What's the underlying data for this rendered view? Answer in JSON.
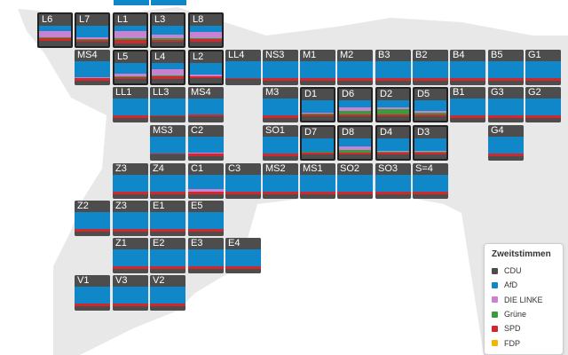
{
  "legend": {
    "title": "Zweitstimmen",
    "items": [
      {
        "key": "cdu",
        "label": "CDU",
        "color": "#4d4d4d"
      },
      {
        "key": "afd",
        "label": "AfD",
        "color": "#0f87c8"
      },
      {
        "key": "linke",
        "label": "DIE LINKE",
        "color": "#c882d2"
      },
      {
        "key": "gruene",
        "label": "Grüne",
        "color": "#3c9a3c"
      },
      {
        "key": "spd",
        "label": "SPD",
        "color": "#d2282d"
      },
      {
        "key": "fdp",
        "label": "FDP",
        "color": "#f5b400"
      }
    ]
  },
  "districts": [
    {
      "label": "L6",
      "selected": true,
      "shares": {
        "cdu": 0.25,
        "afd": 0.25,
        "linke": 0.3,
        "gruene": 0.05,
        "spd": 0.15
      }
    },
    {
      "label": "L7",
      "selected": true,
      "shares": {
        "cdu": 0.2,
        "afd": 0.55,
        "linke": 0.1,
        "gruene": 0.05,
        "spd": 0.1
      }
    },
    {
      "label": "L1",
      "selected": true,
      "shares": {
        "cdu": 0.15,
        "afd": 0.25,
        "linke": 0.35,
        "gruene": 0.1,
        "spd": 0.15
      }
    },
    {
      "label": "L3",
      "selected": true,
      "shares": {
        "cdu": 0.2,
        "afd": 0.45,
        "linke": 0.15,
        "gruene": 0.1,
        "spd": 0.1
      }
    },
    {
      "label": "L8",
      "selected": true,
      "shares": {
        "cdu": 0.2,
        "afd": 0.3,
        "linke": 0.3,
        "gruene": 0.05,
        "spd": 0.15
      }
    },
    {
      "label": "MS4",
      "selected": false,
      "shares": {
        "cdu": 0.2,
        "afd": 0.65,
        "linke": 0.05,
        "spd": 0.1
      }
    },
    {
      "label": "L5",
      "selected": true,
      "shares": {
        "cdu": 0.2,
        "afd": 0.5,
        "linke": 0.15,
        "gruene": 0.05,
        "spd": 0.1
      }
    },
    {
      "label": "L4",
      "selected": true,
      "shares": {
        "cdu": 0.2,
        "afd": 0.3,
        "linke": 0.3,
        "gruene": 0.05,
        "spd": 0.15
      }
    },
    {
      "label": "L2",
      "selected": true,
      "shares": {
        "cdu": 0.25,
        "afd": 0.55,
        "linke": 0.1,
        "spd": 0.1
      }
    },
    {
      "label": "LL4",
      "selected": false,
      "shares": {
        "cdu": 0.25,
        "afd": 0.7,
        "spd": 0.05
      }
    },
    {
      "label": "NS3",
      "selected": false,
      "shares": {
        "cdu": 0.2,
        "afd": 0.7,
        "spd": 0.1
      }
    },
    {
      "label": "M1",
      "selected": false,
      "shares": {
        "cdu": 0.2,
        "afd": 0.7,
        "spd": 0.1
      }
    },
    {
      "label": "M2",
      "selected": false,
      "shares": {
        "cdu": 0.2,
        "afd": 0.7,
        "spd": 0.1
      }
    },
    {
      "label": "B3",
      "selected": false,
      "shares": {
        "cdu": 0.2,
        "afd": 0.7,
        "spd": 0.1
      }
    },
    {
      "label": "B2",
      "selected": false,
      "shares": {
        "cdu": 0.2,
        "afd": 0.7,
        "spd": 0.1
      }
    },
    {
      "label": "B4",
      "selected": false,
      "shares": {
        "cdu": 0.2,
        "afd": 0.7,
        "spd": 0.1
      }
    },
    {
      "label": "B5",
      "selected": false,
      "shares": {
        "cdu": 0.2,
        "afd": 0.7,
        "spd": 0.1
      }
    },
    {
      "label": "G1",
      "selected": false,
      "shares": {
        "cdu": 0.2,
        "afd": 0.7,
        "spd": 0.1
      }
    },
    {
      "label": "LL1",
      "selected": false,
      "shares": {
        "cdu": 0.2,
        "afd": 0.7,
        "spd": 0.1
      }
    },
    {
      "label": "LL3",
      "selected": false,
      "shares": {
        "cdu": 0.25,
        "afd": 0.7,
        "spd": 0.05
      }
    },
    {
      "label": "MS4",
      "selected": false,
      "shares": {
        "cdu": 0.25,
        "afd": 0.65,
        "spd": 0.1
      }
    },
    {
      "label": "M3",
      "selected": false,
      "shares": {
        "cdu": 0.2,
        "afd": 0.7,
        "spd": 0.1
      }
    },
    {
      "label": "D1",
      "selected": true,
      "shares": {
        "cdu": 0.2,
        "afd": 0.6,
        "linke": 0.05,
        "gruene": 0.05,
        "spd": 0.1
      }
    },
    {
      "label": "D6",
      "selected": true,
      "shares": {
        "cdu": 0.2,
        "afd": 0.35,
        "linke": 0.15,
        "gruene": 0.2,
        "spd": 0.1
      }
    },
    {
      "label": "D2",
      "selected": true,
      "shares": {
        "cdu": 0.2,
        "afd": 0.35,
        "linke": 0.1,
        "gruene": 0.25,
        "spd": 0.1
      }
    },
    {
      "label": "D5",
      "selected": true,
      "shares": {
        "cdu": 0.2,
        "afd": 0.5,
        "linke": 0.1,
        "gruene": 0.1,
        "spd": 0.1
      }
    },
    {
      "label": "B1",
      "selected": false,
      "shares": {
        "cdu": 0.2,
        "afd": 0.7,
        "spd": 0.1
      }
    },
    {
      "label": "G3",
      "selected": false,
      "shares": {
        "cdu": 0.2,
        "afd": 0.7,
        "spd": 0.1
      }
    },
    {
      "label": "G2",
      "selected": false,
      "shares": {
        "cdu": 0.2,
        "afd": 0.7,
        "spd": 0.1
      }
    },
    {
      "label": "MS3",
      "selected": false,
      "shares": {
        "cdu": 0.25,
        "afd": 0.7,
        "spd": 0.05
      }
    },
    {
      "label": "C2",
      "selected": false,
      "shares": {
        "cdu": 0.2,
        "afd": 0.65,
        "linke": 0.05,
        "spd": 0.1
      }
    },
    {
      "label": "SO1",
      "selected": false,
      "shares": {
        "cdu": 0.2,
        "afd": 0.7,
        "spd": 0.1
      }
    },
    {
      "label": "D7",
      "selected": true,
      "shares": {
        "cdu": 0.2,
        "afd": 0.65,
        "gruene": 0.05,
        "spd": 0.1
      }
    },
    {
      "label": "D8",
      "selected": true,
      "shares": {
        "cdu": 0.2,
        "afd": 0.4,
        "linke": 0.15,
        "gruene": 0.15,
        "spd": 0.1
      }
    },
    {
      "label": "D4",
      "selected": true,
      "shares": {
        "cdu": 0.2,
        "afd": 0.6,
        "linke": 0.05,
        "gruene": 0.05,
        "spd": 0.1
      }
    },
    {
      "label": "D3",
      "selected": true,
      "shares": {
        "cdu": 0.2,
        "afd": 0.6,
        "linke": 0.05,
        "gruene": 0.05,
        "spd": 0.1
      }
    },
    {
      "label": "G4",
      "selected": false,
      "shares": {
        "cdu": 0.2,
        "afd": 0.7,
        "spd": 0.1
      }
    },
    {
      "label": "Z3",
      "selected": false,
      "shares": {
        "cdu": 0.2,
        "afd": 0.7,
        "spd": 0.1
      }
    },
    {
      "label": "Z4",
      "selected": false,
      "shares": {
        "cdu": 0.2,
        "afd": 0.7,
        "spd": 0.1
      }
    },
    {
      "label": "C1",
      "selected": false,
      "shares": {
        "cdu": 0.2,
        "afd": 0.6,
        "linke": 0.1,
        "spd": 0.1
      }
    },
    {
      "label": "C3",
      "selected": false,
      "shares": {
        "cdu": 0.2,
        "afd": 0.7,
        "spd": 0.1
      }
    },
    {
      "label": "MS2",
      "selected": false,
      "shares": {
        "cdu": 0.2,
        "afd": 0.7,
        "spd": 0.1
      }
    },
    {
      "label": "MS1",
      "selected": false,
      "shares": {
        "cdu": 0.2,
        "afd": 0.7,
        "spd": 0.1
      }
    },
    {
      "label": "SO2",
      "selected": false,
      "shares": {
        "cdu": 0.2,
        "afd": 0.7,
        "spd": 0.1
      }
    },
    {
      "label": "SO3",
      "selected": false,
      "shares": {
        "cdu": 0.2,
        "afd": 0.7,
        "spd": 0.1
      }
    },
    {
      "label": "S=4",
      "selected": false,
      "shares": {
        "cdu": 0.2,
        "afd": 0.7,
        "spd": 0.1
      }
    },
    {
      "label": "Z2",
      "selected": false,
      "shares": {
        "cdu": 0.2,
        "afd": 0.7,
        "spd": 0.1
      }
    },
    {
      "label": "Z3",
      "selected": false,
      "shares": {
        "cdu": 0.2,
        "afd": 0.7,
        "spd": 0.1
      }
    },
    {
      "label": "E1",
      "selected": false,
      "shares": {
        "cdu": 0.2,
        "afd": 0.7,
        "spd": 0.1
      }
    },
    {
      "label": "E5",
      "selected": false,
      "shares": {
        "cdu": 0.2,
        "afd": 0.7,
        "spd": 0.1
      }
    },
    {
      "label": "Z1",
      "selected": false,
      "shares": {
        "cdu": 0.2,
        "afd": 0.7,
        "spd": 0.1
      }
    },
    {
      "label": "E2",
      "selected": false,
      "shares": {
        "cdu": 0.2,
        "afd": 0.7,
        "spd": 0.1
      }
    },
    {
      "label": "E3",
      "selected": false,
      "shares": {
        "cdu": 0.2,
        "afd": 0.7,
        "spd": 0.1
      }
    },
    {
      "label": "E4",
      "selected": false,
      "shares": {
        "cdu": 0.2,
        "afd": 0.7,
        "spd": 0.1
      }
    },
    {
      "label": "V1",
      "selected": false,
      "shares": {
        "cdu": 0.2,
        "afd": 0.7,
        "spd": 0.1
      }
    },
    {
      "label": "V3",
      "selected": false,
      "shares": {
        "cdu": 0.2,
        "afd": 0.7,
        "spd": 0.1
      }
    },
    {
      "label": "V2",
      "selected": false,
      "shares": {
        "cdu": 0.2,
        "afd": 0.7,
        "spd": 0.1
      }
    }
  ]
}
